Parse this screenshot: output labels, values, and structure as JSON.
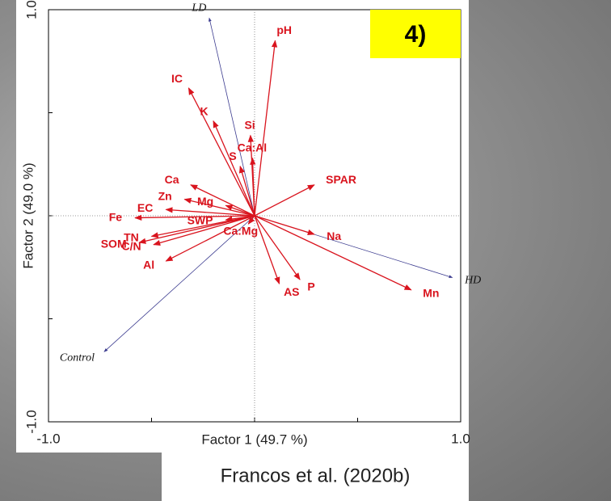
{
  "chart_data": {
    "type": "biplot",
    "panel_label": "4)",
    "x_label": "Factor 1 (49.7 %)",
    "y_label": "Factor 2 (49.0 %)",
    "xlim": [
      -1,
      1
    ],
    "ylim": [
      -1,
      1
    ],
    "xticks": [
      {
        "value": -1,
        "label": "-1.0"
      },
      {
        "value": -0.5,
        "label": null
      },
      {
        "value": 0,
        "label": null
      },
      {
        "value": 0.5,
        "label": null
      },
      {
        "value": 1,
        "label": "1.0"
      }
    ],
    "yticks": [
      {
        "value": -1,
        "label": "-1.0"
      },
      {
        "value": -0.5,
        "label": null
      },
      {
        "value": 0,
        "label": null
      },
      {
        "value": 0.5,
        "label": null
      },
      {
        "value": 1,
        "label": "1.0"
      }
    ],
    "vectors": {
      "color": "#d9141e",
      "labels": [
        "pH",
        "IC",
        "K",
        "Si",
        "Ca:Al",
        "S",
        "SPAR",
        "Ca",
        "Zn",
        "Mg",
        "EC",
        "Fe",
        "SWP",
        "Ca:Mg",
        "Na",
        "TN",
        "SOM",
        "C/N",
        "Al",
        "AS",
        "P",
        "Mn"
      ],
      "x": [
        0.1,
        -0.32,
        -0.2,
        -0.02,
        -0.01,
        -0.07,
        0.29,
        -0.31,
        -0.34,
        -0.14,
        -0.43,
        -0.58,
        -0.14,
        -0.03,
        0.29,
        -0.5,
        -0.56,
        -0.49,
        -0.43,
        0.12,
        0.22,
        0.76
      ],
      "y": [
        0.85,
        0.62,
        0.46,
        0.39,
        0.28,
        0.24,
        0.15,
        0.15,
        0.08,
        0.05,
        0.03,
        -0.01,
        -0.02,
        -0.04,
        -0.09,
        -0.1,
        -0.13,
        -0.14,
        -0.22,
        -0.33,
        -0.31,
        -0.36
      ]
    },
    "supplementary": {
      "color": "#3b3b8f",
      "labels": [
        "LD",
        "HD",
        "Control"
      ],
      "x": [
        -0.22,
        0.96,
        -0.73
      ],
      "y": [
        0.96,
        -0.3,
        -0.66
      ]
    }
  },
  "caption": "Francos et al. (2020b)"
}
